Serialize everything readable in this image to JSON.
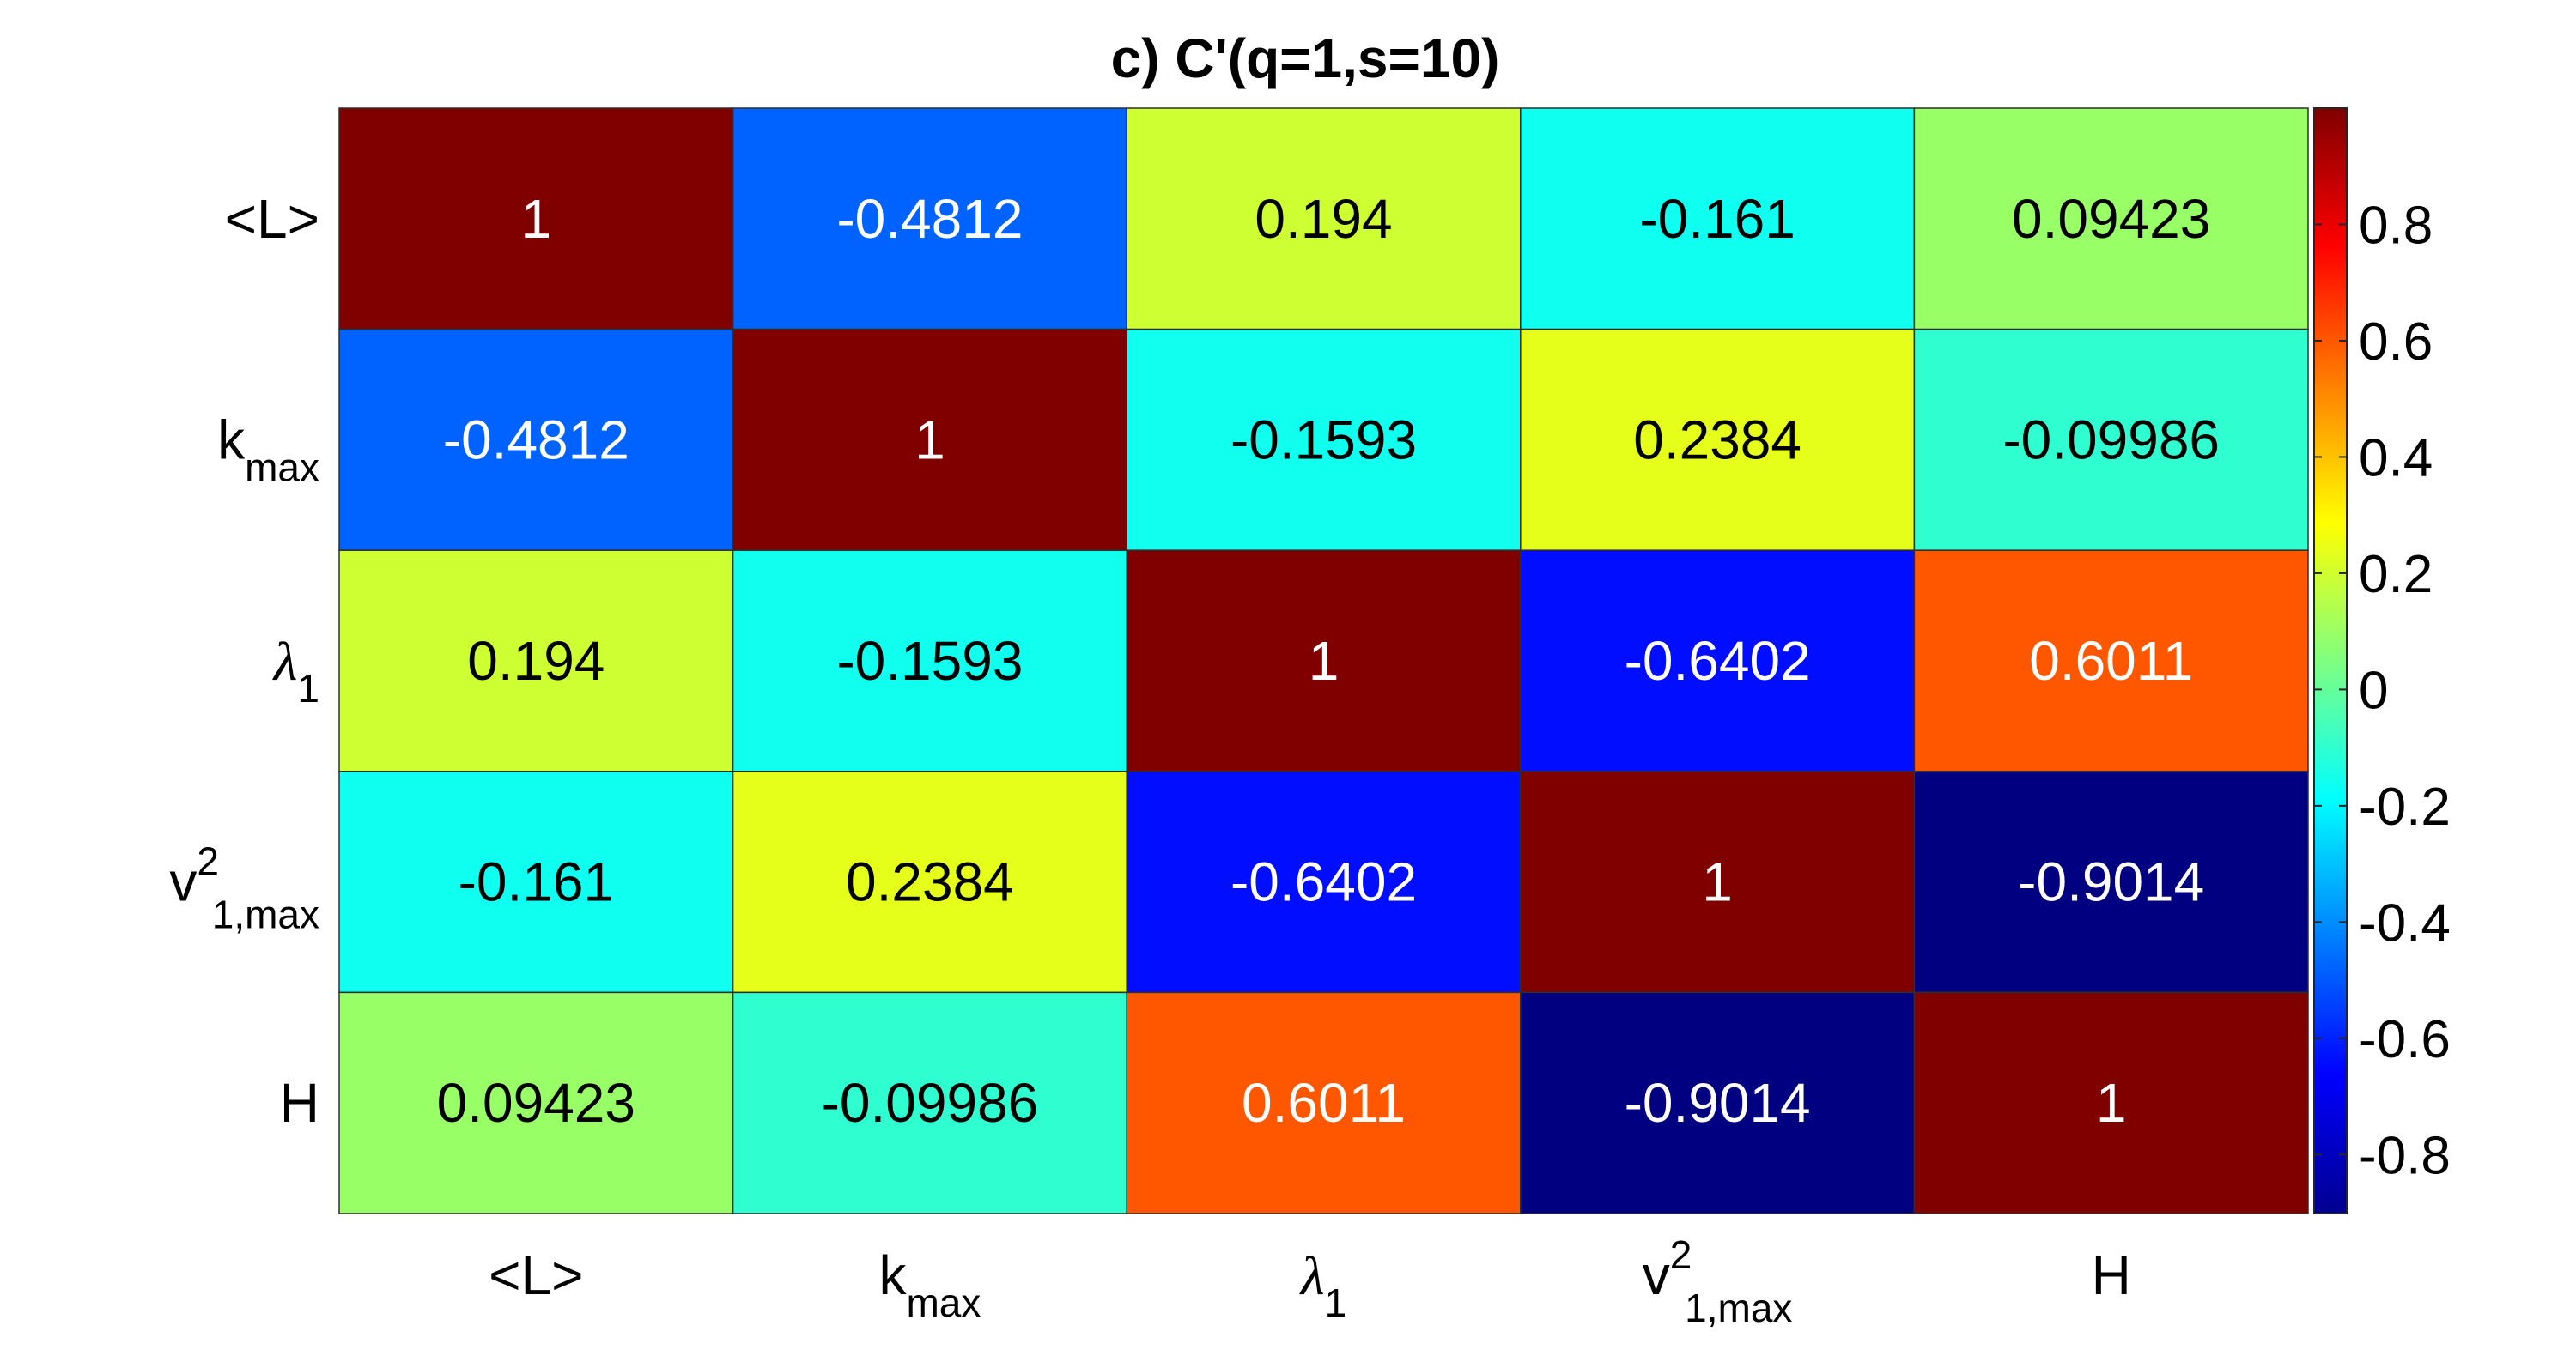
{
  "chart_data": {
    "type": "heatmap",
    "title": "c) C'(q=1,s=10)",
    "row_labels": [
      {
        "base": "<L>",
        "sub": "",
        "sup": ""
      },
      {
        "base": "k",
        "sub": "max",
        "sup": ""
      },
      {
        "base": "λ",
        "sub": "1",
        "sup": ""
      },
      {
        "base": "v",
        "sub": "1,max",
        "sup": "2"
      },
      {
        "base": "H",
        "sub": "",
        "sup": ""
      }
    ],
    "col_labels": [
      {
        "base": "<L>",
        "sub": "",
        "sup": ""
      },
      {
        "base": "k",
        "sub": "max",
        "sup": ""
      },
      {
        "base": "λ",
        "sub": "1",
        "sup": ""
      },
      {
        "base": "v",
        "sub": "1,max",
        "sup": "2"
      },
      {
        "base": "H",
        "sub": "",
        "sup": ""
      }
    ],
    "values": [
      [
        1,
        -0.4812,
        0.194,
        -0.161,
        0.09423
      ],
      [
        -0.4812,
        1,
        -0.1593,
        0.2384,
        -0.09986
      ],
      [
        0.194,
        -0.1593,
        1,
        -0.6402,
        0.6011
      ],
      [
        -0.161,
        0.2384,
        -0.6402,
        1,
        -0.9014
      ],
      [
        0.09423,
        -0.09986,
        0.6011,
        -0.9014,
        1
      ]
    ],
    "cell_labels": [
      [
        "1",
        "-0.4812",
        "0.194",
        "-0.161",
        "0.09423"
      ],
      [
        "-0.4812",
        "1",
        "-0.1593",
        "0.2384",
        "-0.09986"
      ],
      [
        "0.194",
        "-0.1593",
        "1",
        "-0.6402",
        "0.6011"
      ],
      [
        "-0.161",
        "0.2384",
        "-0.6402",
        "1",
        "-0.9014"
      ],
      [
        "0.09423",
        "-0.09986",
        "0.6011",
        "-0.9014",
        "1"
      ]
    ],
    "colormap": "jet",
    "color_range": [
      -0.9014,
      1
    ],
    "colorbar": {
      "position": "right",
      "ticks": [
        0.8,
        0.6,
        0.4,
        0.2,
        0,
        -0.2,
        -0.4,
        -0.6,
        -0.8
      ],
      "tick_labels": [
        "0.8",
        "0.6",
        "0.4",
        "0.2",
        "0",
        "-0.2",
        "-0.4",
        "-0.6",
        "-0.8"
      ]
    }
  }
}
